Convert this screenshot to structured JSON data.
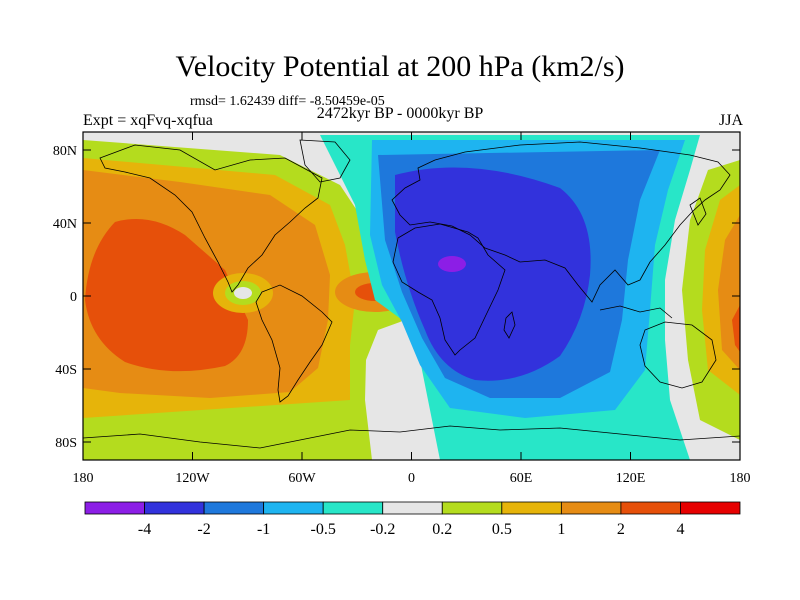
{
  "title": "Velocity Potential at 200 hPa (km2/s)",
  "stats": "rmsd= 1.62439 diff= -8.50459e-05",
  "experiment": "Expt = xqFvq-xqfua",
  "period": "2472kyr BP - 0000kyr BP",
  "season": "JJA",
  "y_ticks": [
    "80N",
    "40N",
    "0",
    "40S",
    "80S"
  ],
  "x_ticks": [
    "180",
    "120W",
    "60W",
    "0",
    "60E",
    "120E",
    "180"
  ],
  "colorbar": {
    "colors": [
      "#8c1ee6",
      "#3232dc",
      "#1e78dc",
      "#1eb4f0",
      "#28e6c8",
      "#e6e6e6",
      "#b4dc1e",
      "#e6b40a",
      "#e68c14",
      "#e6500a",
      "#e60000"
    ],
    "labels": [
      "-4",
      "-2",
      "-1",
      "-0.5",
      "-0.2",
      "0.2",
      "0.5",
      "1",
      "2",
      "4"
    ]
  }
}
